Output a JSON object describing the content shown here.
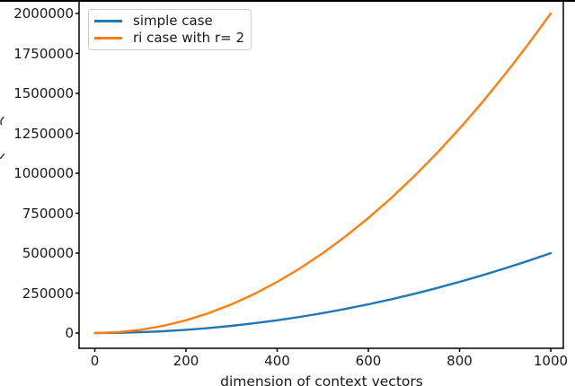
{
  "chart_data": {
    "type": "line",
    "title": "",
    "xlabel": "dimension of context vectors",
    "ylabel": "",
    "grid": false,
    "legend_position": "upper-left",
    "x_tick_values": [
      0,
      200,
      400,
      600,
      800,
      1000
    ],
    "y_tick_values": [
      0,
      250000,
      500000,
      750000,
      1000000,
      1250000,
      1500000,
      1750000,
      2000000
    ],
    "xlim": [
      -34.5,
      1027.6
    ],
    "ylim": [
      -95500,
      2078700
    ],
    "x": [
      0,
      50,
      100,
      150,
      200,
      250,
      300,
      350,
      400,
      450,
      500,
      550,
      600,
      650,
      700,
      750,
      800,
      850,
      900,
      950,
      1000
    ],
    "series": [
      {
        "name": "simple case",
        "color": "#1f77b4",
        "values": [
          0,
          1250,
          5000,
          11250,
          20000,
          31250,
          45000,
          61250,
          80000,
          101250,
          125000,
          151250,
          180000,
          211250,
          245000,
          281250,
          320000,
          361250,
          405000,
          451250,
          500000
        ]
      },
      {
        "name": "ri case with r= 2",
        "color": "#ff7f0e",
        "values": [
          0,
          5000,
          20000,
          45000,
          80000,
          125000,
          180000,
          245000,
          320000,
          405000,
          500000,
          605000,
          720000,
          845000,
          980000,
          1125000,
          1280000,
          1445000,
          1620000,
          1805000,
          2000000
        ]
      }
    ]
  },
  "colors": {
    "axis": "#000000",
    "text": "#1a1a1a",
    "legend_border": "#cccccc",
    "background": "#ffffff"
  }
}
